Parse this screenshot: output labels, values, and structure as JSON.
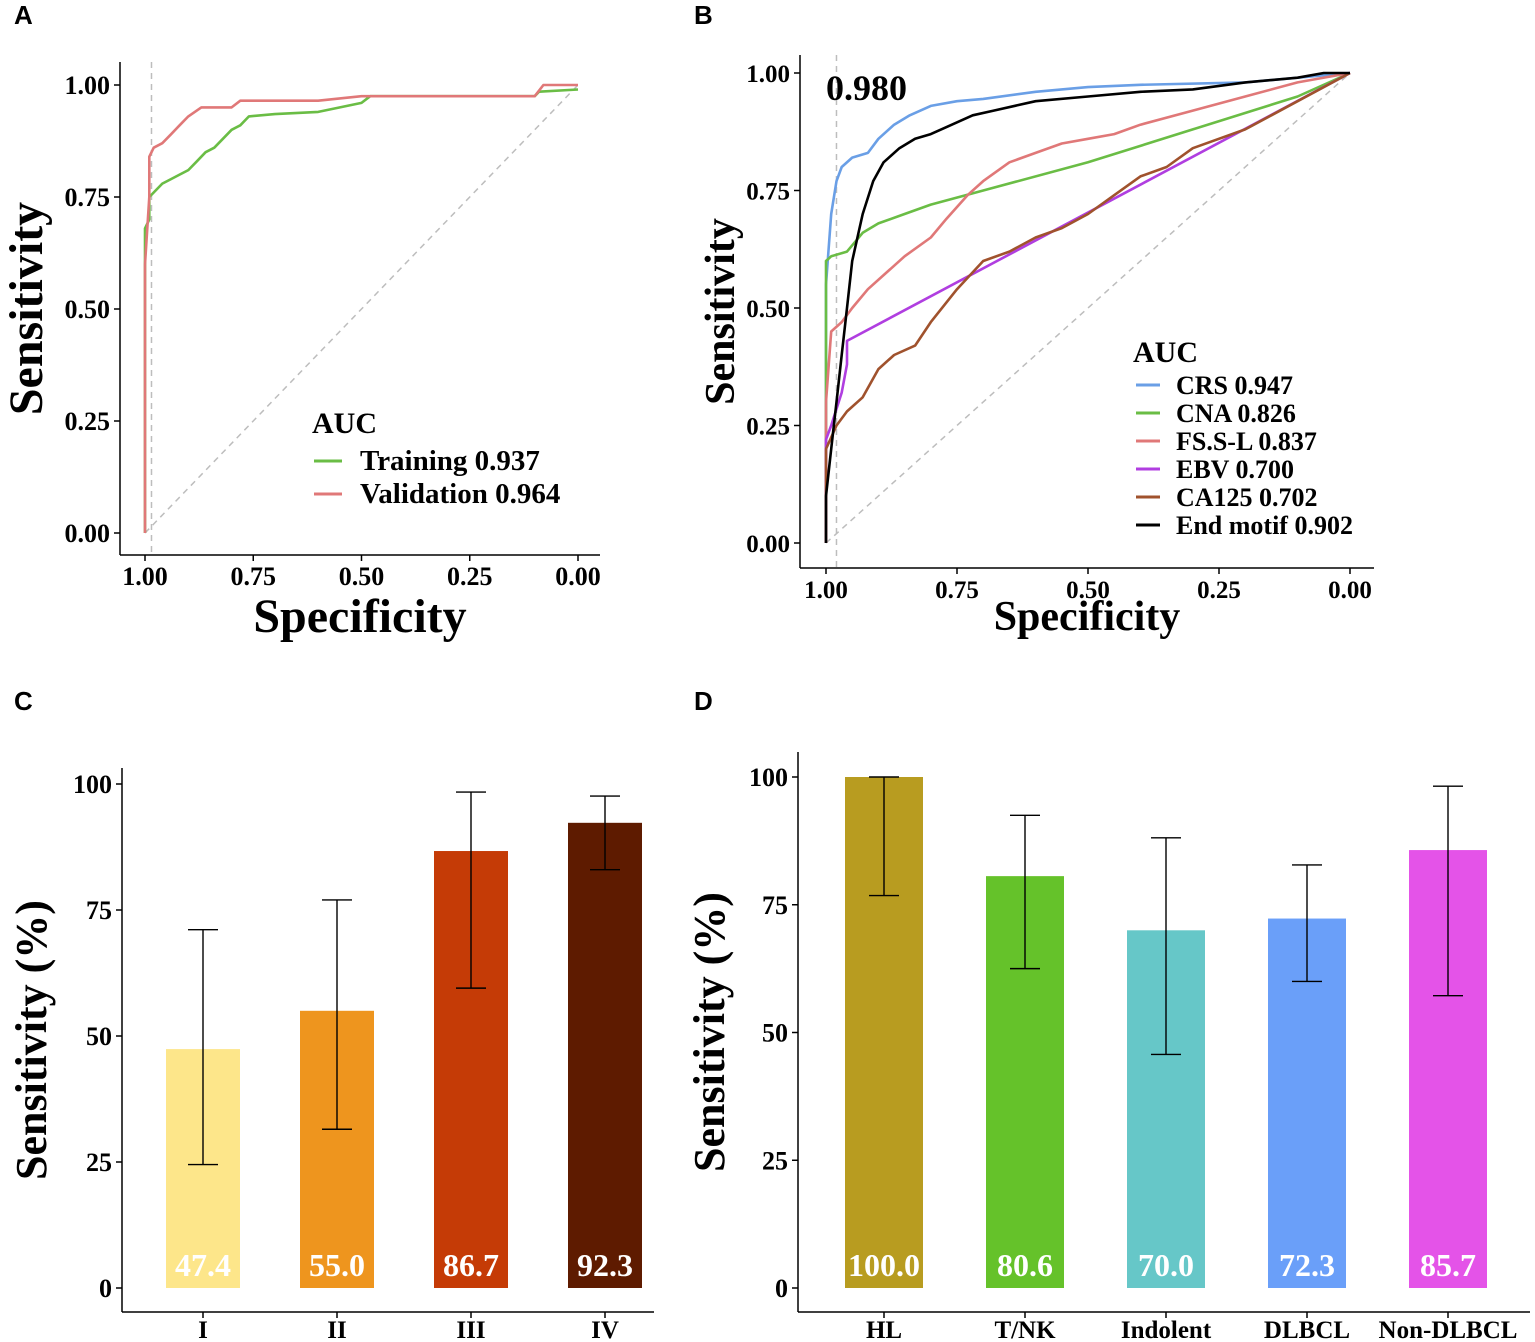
{
  "panels": {
    "A": {
      "letter": "A"
    },
    "B": {
      "letter": "B"
    },
    "C": {
      "letter": "C"
    },
    "D": {
      "letter": "D"
    }
  },
  "chart_data": [
    {
      "id": "A",
      "type": "line",
      "xlabel": "Specificity",
      "ylabel": "Sensitivity",
      "xlim": [
        1.0,
        0.0
      ],
      "ylim": [
        0.0,
        1.0
      ],
      "xticks": [
        "1.00",
        "0.75",
        "0.50",
        "0.25",
        "0.00"
      ],
      "yticks": [
        "0.00",
        "0.25",
        "0.50",
        "0.75",
        "1.00"
      ],
      "legend_title": "AUC",
      "reference_specificity": 0.985,
      "series": [
        {
          "name": "Training 0.937",
          "color": "#6abd45",
          "points": [
            [
              1.0,
              0.0
            ],
            [
              1.0,
              0.68
            ],
            [
              0.99,
              0.7
            ],
            [
              0.99,
              0.75
            ],
            [
              0.98,
              0.76
            ],
            [
              0.96,
              0.78
            ],
            [
              0.94,
              0.79
            ],
            [
              0.92,
              0.8
            ],
            [
              0.9,
              0.81
            ],
            [
              0.88,
              0.83
            ],
            [
              0.86,
              0.85
            ],
            [
              0.84,
              0.86
            ],
            [
              0.82,
              0.88
            ],
            [
              0.8,
              0.9
            ],
            [
              0.78,
              0.91
            ],
            [
              0.76,
              0.93
            ],
            [
              0.7,
              0.935
            ],
            [
              0.6,
              0.94
            ],
            [
              0.55,
              0.95
            ],
            [
              0.5,
              0.96
            ],
            [
              0.48,
              0.975
            ],
            [
              0.3,
              0.975
            ],
            [
              0.1,
              0.975
            ],
            [
              0.09,
              0.985
            ],
            [
              0.0,
              0.99
            ]
          ]
        },
        {
          "name": "Validation 0.964",
          "color": "#e07878",
          "points": [
            [
              1.0,
              0.0
            ],
            [
              1.0,
              0.6
            ],
            [
              0.99,
              0.75
            ],
            [
              0.99,
              0.84
            ],
            [
              0.98,
              0.86
            ],
            [
              0.96,
              0.87
            ],
            [
              0.94,
              0.89
            ],
            [
              0.92,
              0.91
            ],
            [
              0.9,
              0.93
            ],
            [
              0.87,
              0.95
            ],
            [
              0.8,
              0.95
            ],
            [
              0.78,
              0.965
            ],
            [
              0.6,
              0.965
            ],
            [
              0.5,
              0.975
            ],
            [
              0.4,
              0.975
            ],
            [
              0.1,
              0.975
            ],
            [
              0.08,
              1.0
            ],
            [
              0.0,
              1.0
            ]
          ]
        }
      ]
    },
    {
      "id": "B",
      "type": "line",
      "xlabel": "Specificity",
      "ylabel": "Sensitivity",
      "xlim": [
        1.0,
        0.0
      ],
      "ylim": [
        0.0,
        1.0
      ],
      "xticks": [
        "1.00",
        "0.75",
        "0.50",
        "0.25",
        "0.00"
      ],
      "yticks": [
        "0.00",
        "0.25",
        "0.50",
        "0.75",
        "1.00"
      ],
      "legend_title": "AUC",
      "annotation": "0.980",
      "reference_specificity": 0.98,
      "series": [
        {
          "name": "CRS 0.947",
          "color": "#6a9fe6",
          "points": [
            [
              1.0,
              0.0
            ],
            [
              1.0,
              0.55
            ],
            [
              0.99,
              0.7
            ],
            [
              0.98,
              0.77
            ],
            [
              0.97,
              0.8
            ],
            [
              0.95,
              0.82
            ],
            [
              0.92,
              0.83
            ],
            [
              0.9,
              0.86
            ],
            [
              0.87,
              0.89
            ],
            [
              0.84,
              0.91
            ],
            [
              0.8,
              0.93
            ],
            [
              0.75,
              0.94
            ],
            [
              0.7,
              0.945
            ],
            [
              0.6,
              0.96
            ],
            [
              0.5,
              0.97
            ],
            [
              0.4,
              0.975
            ],
            [
              0.2,
              0.98
            ],
            [
              0.0,
              1.0
            ]
          ]
        },
        {
          "name": "CNA 0.826",
          "color": "#6abd45",
          "points": [
            [
              1.0,
              0.0
            ],
            [
              1.0,
              0.6
            ],
            [
              0.99,
              0.61
            ],
            [
              0.96,
              0.62
            ],
            [
              0.93,
              0.66
            ],
            [
              0.9,
              0.68
            ],
            [
              0.85,
              0.7
            ],
            [
              0.8,
              0.72
            ],
            [
              0.7,
              0.75
            ],
            [
              0.5,
              0.81
            ],
            [
              0.3,
              0.88
            ],
            [
              0.1,
              0.95
            ],
            [
              0.0,
              1.0
            ]
          ]
        },
        {
          "name": "FS.S-L 0.837",
          "color": "#e07878",
          "points": [
            [
              1.0,
              0.0
            ],
            [
              1.0,
              0.3
            ],
            [
              0.99,
              0.45
            ],
            [
              0.97,
              0.47
            ],
            [
              0.95,
              0.5
            ],
            [
              0.92,
              0.54
            ],
            [
              0.88,
              0.58
            ],
            [
              0.85,
              0.61
            ],
            [
              0.8,
              0.65
            ],
            [
              0.77,
              0.69
            ],
            [
              0.73,
              0.74
            ],
            [
              0.7,
              0.77
            ],
            [
              0.65,
              0.81
            ],
            [
              0.6,
              0.83
            ],
            [
              0.55,
              0.85
            ],
            [
              0.5,
              0.86
            ],
            [
              0.45,
              0.87
            ],
            [
              0.4,
              0.89
            ],
            [
              0.3,
              0.92
            ],
            [
              0.2,
              0.95
            ],
            [
              0.1,
              0.98
            ],
            [
              0.0,
              1.0
            ]
          ]
        },
        {
          "name": "EBV 0.700",
          "color": "#b03ee0",
          "points": [
            [
              1.0,
              0.0
            ],
            [
              1.0,
              0.22
            ],
            [
              0.99,
              0.25
            ],
            [
              0.97,
              0.32
            ],
            [
              0.96,
              0.38
            ],
            [
              0.96,
              0.43
            ],
            [
              0.0,
              1.0
            ]
          ]
        },
        {
          "name": "CA125 0.702",
          "color": "#a0522d",
          "points": [
            [
              1.0,
              0.0
            ],
            [
              1.0,
              0.2
            ],
            [
              0.98,
              0.25
            ],
            [
              0.96,
              0.28
            ],
            [
              0.93,
              0.31
            ],
            [
              0.9,
              0.37
            ],
            [
              0.87,
              0.4
            ],
            [
              0.83,
              0.42
            ],
            [
              0.8,
              0.47
            ],
            [
              0.75,
              0.54
            ],
            [
              0.7,
              0.6
            ],
            [
              0.65,
              0.62
            ],
            [
              0.6,
              0.65
            ],
            [
              0.55,
              0.67
            ],
            [
              0.5,
              0.7
            ],
            [
              0.45,
              0.74
            ],
            [
              0.4,
              0.78
            ],
            [
              0.35,
              0.8
            ],
            [
              0.3,
              0.84
            ],
            [
              0.2,
              0.88
            ],
            [
              0.15,
              0.91
            ],
            [
              0.1,
              0.94
            ],
            [
              0.05,
              0.97
            ],
            [
              0.0,
              1.0
            ]
          ]
        },
        {
          "name": "End motif 0.902",
          "color": "#000000",
          "points": [
            [
              1.0,
              0.0
            ],
            [
              1.0,
              0.1
            ],
            [
              0.99,
              0.2
            ],
            [
              0.98,
              0.3
            ],
            [
              0.97,
              0.4
            ],
            [
              0.96,
              0.5
            ],
            [
              0.95,
              0.6
            ],
            [
              0.93,
              0.7
            ],
            [
              0.91,
              0.77
            ],
            [
              0.89,
              0.81
            ],
            [
              0.86,
              0.84
            ],
            [
              0.83,
              0.86
            ],
            [
              0.8,
              0.87
            ],
            [
              0.76,
              0.89
            ],
            [
              0.72,
              0.91
            ],
            [
              0.68,
              0.92
            ],
            [
              0.6,
              0.94
            ],
            [
              0.5,
              0.95
            ],
            [
              0.4,
              0.96
            ],
            [
              0.3,
              0.965
            ],
            [
              0.2,
              0.98
            ],
            [
              0.1,
              0.99
            ],
            [
              0.05,
              1.0
            ],
            [
              0.0,
              1.0
            ]
          ]
        }
      ]
    },
    {
      "id": "C",
      "type": "bar",
      "xlabel": "",
      "ylabel": "Sensitivity (%)",
      "ylim": [
        0,
        100
      ],
      "yticks": [
        "0",
        "25",
        "50",
        "75",
        "100"
      ],
      "categories": [
        "I",
        "II",
        "III",
        "IV"
      ],
      "values": [
        47.4,
        55.0,
        86.7,
        92.3
      ],
      "labels": [
        "47.4",
        "55.0",
        "86.7",
        "92.3"
      ],
      "error_low": [
        24.5,
        31.5,
        59.5,
        83.0
      ],
      "error_high": [
        71.1,
        77.0,
        98.4,
        97.6
      ],
      "colors": [
        "#fde68a",
        "#ee951e",
        "#c53b06",
        "#5e1b00"
      ]
    },
    {
      "id": "D",
      "type": "bar",
      "xlabel": "",
      "ylabel": "Sensitivity (%)",
      "ylim": [
        0,
        100
      ],
      "yticks": [
        "0",
        "25",
        "50",
        "75",
        "100"
      ],
      "categories": [
        "HL",
        "T/NK",
        "Indolent",
        "DLBCL",
        "Non-DLBCL"
      ],
      "values": [
        100.0,
        80.6,
        70.0,
        72.3,
        85.7
      ],
      "labels": [
        "100.0",
        "80.6",
        "70.0",
        "72.3",
        "85.7"
      ],
      "error_low": [
        76.8,
        62.5,
        45.7,
        60.0,
        57.2
      ],
      "error_high": [
        100.0,
        92.5,
        88.1,
        82.8,
        98.2
      ],
      "colors": [
        "#b89c20",
        "#65c22a",
        "#66c7c8",
        "#6a9ff9",
        "#e453e8"
      ]
    }
  ]
}
